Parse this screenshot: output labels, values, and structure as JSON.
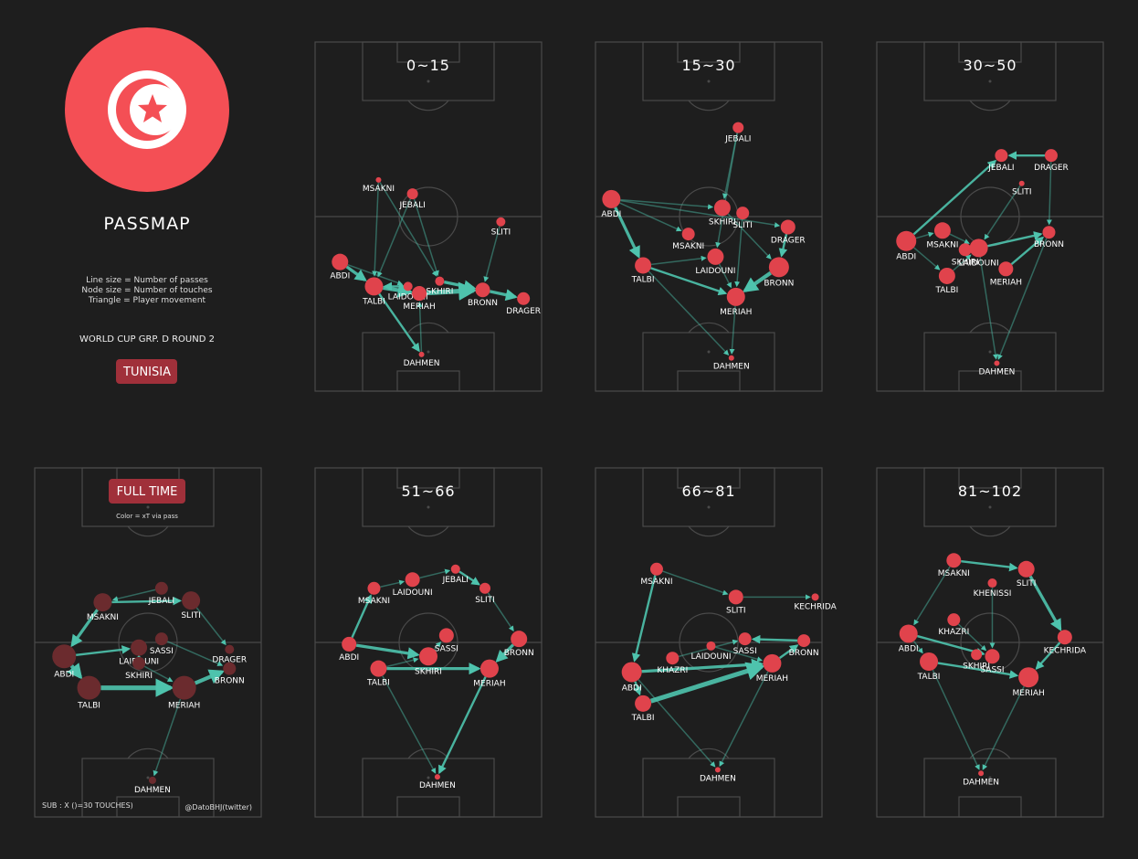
{
  "header": {
    "title": "PASSMAP",
    "legend": [
      "Line size = Number of passes",
      "Node size = Number of touches",
      "Triangle = Player movement"
    ],
    "competition": "WORLD CUP GRP. D ROUND 2",
    "team_badge": "TUNISIA",
    "flag_color": "#f44f55"
  },
  "fulltime": {
    "badge": "FULL TIME",
    "note": "Color = xT via pass",
    "sub_note": "SUB : X ()=30 TOUCHES)",
    "credit": "@DatoBHJ(twitter)"
  },
  "colors": {
    "node": "#e0434c",
    "node_dim": "#6b2b2e",
    "edge": "#4ec3ad",
    "badge": "#a0303a",
    "line": "#4a4a4a"
  },
  "chart_data": [
    {
      "type": "network",
      "title": "0~15",
      "nodes": [
        {
          "name": "MSAKNI",
          "x": 0.28,
          "y": 0.395,
          "r": 3
        },
        {
          "name": "JEBALI",
          "x": 0.43,
          "y": 0.435,
          "r": 6
        },
        {
          "name": "SLITI",
          "x": 0.82,
          "y": 0.515,
          "r": 5
        },
        {
          "name": "ABDI",
          "x": 0.11,
          "y": 0.63,
          "r": 9
        },
        {
          "name": "TALBI",
          "x": 0.26,
          "y": 0.7,
          "r": 10
        },
        {
          "name": "LAIDOUNI",
          "x": 0.41,
          "y": 0.7,
          "r": 5
        },
        {
          "name": "SKHIRI",
          "x": 0.55,
          "y": 0.685,
          "r": 5
        },
        {
          "name": "MERIAH",
          "x": 0.46,
          "y": 0.72,
          "r": 8
        },
        {
          "name": "BRONN",
          "x": 0.74,
          "y": 0.71,
          "r": 8
        },
        {
          "name": "DRAGER",
          "x": 0.92,
          "y": 0.735,
          "r": 7
        },
        {
          "name": "DAHMEN",
          "x": 0.47,
          "y": 0.895,
          "r": 3
        }
      ],
      "edges": [
        [
          "TALBI",
          "MERIAH",
          4
        ],
        [
          "MERIAH",
          "BRONN",
          5
        ],
        [
          "BRONN",
          "DRAGER",
          3
        ],
        [
          "ABDI",
          "TALBI",
          3
        ],
        [
          "TALBI",
          "DAHMEN",
          2
        ],
        [
          "SKHIRI",
          "BRONN",
          3
        ],
        [
          "LAIDOUNI",
          "TALBI",
          2
        ],
        [
          "JEBALI",
          "TALBI",
          1
        ],
        [
          "MSAKNI",
          "TALBI",
          1
        ],
        [
          "JEBALI",
          "SKHIRI",
          1
        ],
        [
          "SLITI",
          "BRONN",
          1
        ],
        [
          "ABDI",
          "LAIDOUNI",
          1
        ],
        [
          "DAHMEN",
          "MERIAH",
          1
        ],
        [
          "MSAKNI",
          "SKHIRI",
          1
        ]
      ]
    },
    {
      "type": "network",
      "title": "15~30",
      "nodes": [
        {
          "name": "JEBALI",
          "x": 0.63,
          "y": 0.245,
          "r": 6
        },
        {
          "name": "ABDI",
          "x": 0.07,
          "y": 0.45,
          "r": 10
        },
        {
          "name": "SKHIRI",
          "x": 0.56,
          "y": 0.475,
          "r": 9
        },
        {
          "name": "SLITI",
          "x": 0.65,
          "y": 0.49,
          "r": 7
        },
        {
          "name": "MSAKNI",
          "x": 0.41,
          "y": 0.55,
          "r": 7
        },
        {
          "name": "DRAGER",
          "x": 0.85,
          "y": 0.53,
          "r": 8
        },
        {
          "name": "LAIDOUNI",
          "x": 0.53,
          "y": 0.615,
          "r": 9
        },
        {
          "name": "TALBI",
          "x": 0.21,
          "y": 0.64,
          "r": 9
        },
        {
          "name": "BRONN",
          "x": 0.81,
          "y": 0.645,
          "r": 11
        },
        {
          "name": "MERIAH",
          "x": 0.62,
          "y": 0.73,
          "r": 10
        },
        {
          "name": "DAHMEN",
          "x": 0.6,
          "y": 0.905,
          "r": 3
        }
      ],
      "edges": [
        [
          "ABDI",
          "TALBI",
          3
        ],
        [
          "BRONN",
          "MERIAH",
          4
        ],
        [
          "TALBI",
          "MERIAH",
          2
        ],
        [
          "DRAGER",
          "BRONN",
          2
        ],
        [
          "ABDI",
          "SKHIRI",
          1
        ],
        [
          "ABDI",
          "MSAKNI",
          1
        ],
        [
          "ABDI",
          "DRAGER",
          1
        ],
        [
          "SKHIRI",
          "BRONN",
          1
        ],
        [
          "LAIDOUNI",
          "MERIAH",
          1
        ],
        [
          "JEBALI",
          "SKHIRI",
          1
        ],
        [
          "JEBALI",
          "LAIDOUNI",
          1
        ],
        [
          "TALBI",
          "LAIDOUNI",
          1
        ],
        [
          "MERIAH",
          "DAHMEN",
          1
        ],
        [
          "SLITI",
          "MERIAH",
          1
        ],
        [
          "TALBI",
          "DAHMEN",
          1
        ]
      ]
    },
    {
      "type": "network",
      "title": "30~50",
      "nodes": [
        {
          "name": "JEBALI",
          "x": 0.55,
          "y": 0.325,
          "r": 7
        },
        {
          "name": "DRAGER",
          "x": 0.77,
          "y": 0.325,
          "r": 7
        },
        {
          "name": "SLITI",
          "x": 0.64,
          "y": 0.405,
          "r": 3
        },
        {
          "name": "ABDI",
          "x": 0.13,
          "y": 0.57,
          "r": 11
        },
        {
          "name": "MSAKNI",
          "x": 0.29,
          "y": 0.54,
          "r": 9
        },
        {
          "name": "BRONN",
          "x": 0.76,
          "y": 0.545,
          "r": 7
        },
        {
          "name": "SKHIRI",
          "x": 0.39,
          "y": 0.595,
          "r": 7
        },
        {
          "name": "LAIDOUNI",
          "x": 0.45,
          "y": 0.59,
          "r": 10
        },
        {
          "name": "MERIAH",
          "x": 0.57,
          "y": 0.65,
          "r": 8
        },
        {
          "name": "TALBI",
          "x": 0.31,
          "y": 0.67,
          "r": 9
        },
        {
          "name": "DAHMEN",
          "x": 0.53,
          "y": 0.92,
          "r": 3
        }
      ],
      "edges": [
        [
          "ABDI",
          "JEBALI",
          2
        ],
        [
          "DRAGER",
          "JEBALI",
          2
        ],
        [
          "LAIDOUNI",
          "BRONN",
          2
        ],
        [
          "MERIAH",
          "BRONN",
          2
        ],
        [
          "ABDI",
          "MSAKNI",
          1
        ],
        [
          "MSAKNI",
          "LAIDOUNI",
          1
        ],
        [
          "TALBI",
          "LAIDOUNI",
          1
        ],
        [
          "SLITI",
          "LAIDOUNI",
          1
        ],
        [
          "LAIDOUNI",
          "DAHMEN",
          1
        ],
        [
          "ABDI",
          "TALBI",
          1
        ],
        [
          "DRAGER",
          "BRONN",
          1
        ],
        [
          "BRONN",
          "DAHMEN",
          1
        ]
      ]
    },
    {
      "type": "network",
      "title": "FULL TIME",
      "dimmed": true,
      "nodes": [
        {
          "name": "JEBALI",
          "x": 0.56,
          "y": 0.345,
          "r": 7
        },
        {
          "name": "SLITI",
          "x": 0.69,
          "y": 0.38,
          "r": 10
        },
        {
          "name": "MSAKNI",
          "x": 0.3,
          "y": 0.385,
          "r": 10
        },
        {
          "name": "DRAGER",
          "x": 0.86,
          "y": 0.52,
          "r": 5
        },
        {
          "name": "SASSI",
          "x": 0.56,
          "y": 0.49,
          "r": 7
        },
        {
          "name": "ABDI",
          "x": 0.13,
          "y": 0.54,
          "r": 13
        },
        {
          "name": "LAIDOUNI",
          "x": 0.46,
          "y": 0.515,
          "r": 9
        },
        {
          "name": "SKHIRI",
          "x": 0.46,
          "y": 0.56,
          "r": 7
        },
        {
          "name": "BRONN",
          "x": 0.86,
          "y": 0.575,
          "r": 7
        },
        {
          "name": "TALBI",
          "x": 0.24,
          "y": 0.63,
          "r": 13
        },
        {
          "name": "MERIAH",
          "x": 0.66,
          "y": 0.63,
          "r": 13
        },
        {
          "name": "DAHMEN",
          "x": 0.52,
          "y": 0.895,
          "r": 4
        }
      ],
      "edges": [
        [
          "TALBI",
          "MERIAH",
          5
        ],
        [
          "ABDI",
          "TALBI",
          4
        ],
        [
          "MERIAH",
          "BRONN",
          4
        ],
        [
          "MSAKNI",
          "ABDI",
          3
        ],
        [
          "MSAKNI",
          "SLITI",
          2
        ],
        [
          "ABDI",
          "LAIDOUNI",
          2
        ],
        [
          "MERIAH",
          "DAHMEN",
          1
        ],
        [
          "SKHIRI",
          "MERIAH",
          1
        ],
        [
          "JEBALI",
          "MSAKNI",
          1
        ],
        [
          "SASSI",
          "BRONN",
          1
        ],
        [
          "SLITI",
          "DRAGER",
          1
        ],
        [
          "LAIDOUNI",
          "SKHIRI",
          1
        ]
      ]
    },
    {
      "type": "network",
      "title": "51~66",
      "nodes": [
        {
          "name": "JEBALI",
          "x": 0.62,
          "y": 0.29,
          "r": 5
        },
        {
          "name": "LAIDOUNI",
          "x": 0.43,
          "y": 0.32,
          "r": 8
        },
        {
          "name": "SLITI",
          "x": 0.75,
          "y": 0.345,
          "r": 6
        },
        {
          "name": "MSAKNI",
          "x": 0.26,
          "y": 0.345,
          "r": 7
        },
        {
          "name": "SASSI",
          "x": 0.58,
          "y": 0.48,
          "r": 8
        },
        {
          "name": "BRONN",
          "x": 0.9,
          "y": 0.49,
          "r": 9
        },
        {
          "name": "ABDI",
          "x": 0.15,
          "y": 0.505,
          "r": 8
        },
        {
          "name": "SKHIRI",
          "x": 0.5,
          "y": 0.54,
          "r": 10
        },
        {
          "name": "TALBI",
          "x": 0.28,
          "y": 0.575,
          "r": 9
        },
        {
          "name": "MERIAH",
          "x": 0.77,
          "y": 0.575,
          "r": 10
        },
        {
          "name": "DAHMEN",
          "x": 0.54,
          "y": 0.885,
          "r": 3
        }
      ],
      "edges": [
        [
          "TALBI",
          "MERIAH",
          3
        ],
        [
          "ABDI",
          "SKHIRI",
          3
        ],
        [
          "BRONN",
          "MERIAH",
          3
        ],
        [
          "JEBALI",
          "SLITI",
          2
        ],
        [
          "MERIAH",
          "DAHMEN",
          2
        ],
        [
          "ABDI",
          "MSAKNI",
          2
        ],
        [
          "MSAKNI",
          "LAIDOUNI",
          1
        ],
        [
          "SLITI",
          "BRONN",
          1
        ],
        [
          "SKHIRI",
          "SASSI",
          1
        ],
        [
          "TALBI",
          "SKHIRI",
          1
        ],
        [
          "LAIDOUNI",
          "JEBALI",
          1
        ],
        [
          "TALBI",
          "DAHMEN",
          1
        ]
      ]
    },
    {
      "type": "network",
      "title": "66~81",
      "nodes": [
        {
          "name": "MSAKNI",
          "x": 0.27,
          "y": 0.29,
          "r": 7
        },
        {
          "name": "SLITI",
          "x": 0.62,
          "y": 0.37,
          "r": 8
        },
        {
          "name": "KECHRIDA",
          "x": 0.97,
          "y": 0.37,
          "r": 4
        },
        {
          "name": "SASSI",
          "x": 0.66,
          "y": 0.49,
          "r": 7
        },
        {
          "name": "BRONN",
          "x": 0.92,
          "y": 0.495,
          "r": 7
        },
        {
          "name": "LAIDOUNI",
          "x": 0.51,
          "y": 0.51,
          "r": 5
        },
        {
          "name": "KHAZRI",
          "x": 0.34,
          "y": 0.545,
          "r": 7
        },
        {
          "name": "MERIAH",
          "x": 0.78,
          "y": 0.56,
          "r": 10
        },
        {
          "name": "ABDI",
          "x": 0.16,
          "y": 0.585,
          "r": 11
        },
        {
          "name": "TALBI",
          "x": 0.21,
          "y": 0.675,
          "r": 9
        },
        {
          "name": "DAHMEN",
          "x": 0.54,
          "y": 0.865,
          "r": 3
        }
      ],
      "edges": [
        [
          "TALBI",
          "MERIAH",
          5
        ],
        [
          "ABDI",
          "MERIAH",
          3
        ],
        [
          "MSAKNI",
          "ABDI",
          2
        ],
        [
          "ABDI",
          "TALBI",
          2
        ],
        [
          "BRONN",
          "SASSI",
          2
        ],
        [
          "MERIAH",
          "BRONN",
          2
        ],
        [
          "MSAKNI",
          "SLITI",
          1
        ],
        [
          "KHAZRI",
          "SASSI",
          1
        ],
        [
          "LAIDOUNI",
          "MERIAH",
          1
        ],
        [
          "ABDI",
          "DAHMEN",
          1
        ],
        [
          "MERIAH",
          "DAHMEN",
          1
        ],
        [
          "SLITI",
          "KECHRIDA",
          1
        ]
      ]
    },
    {
      "type": "network",
      "title": "81~102",
      "nodes": [
        {
          "name": "MSAKNI",
          "x": 0.34,
          "y": 0.265,
          "r": 8
        },
        {
          "name": "SLITI",
          "x": 0.66,
          "y": 0.29,
          "r": 9
        },
        {
          "name": "KHENISSI",
          "x": 0.51,
          "y": 0.33,
          "r": 5
        },
        {
          "name": "KHAZRI",
          "x": 0.34,
          "y": 0.435,
          "r": 7
        },
        {
          "name": "ABDI",
          "x": 0.14,
          "y": 0.475,
          "r": 10
        },
        {
          "name": "KECHRIDA",
          "x": 0.83,
          "y": 0.485,
          "r": 8
        },
        {
          "name": "TALBI",
          "x": 0.23,
          "y": 0.555,
          "r": 10
        },
        {
          "name": "SKHIRI",
          "x": 0.44,
          "y": 0.535,
          "r": 6
        },
        {
          "name": "SASSI",
          "x": 0.51,
          "y": 0.54,
          "r": 8
        },
        {
          "name": "MERIAH",
          "x": 0.67,
          "y": 0.6,
          "r": 11
        },
        {
          "name": "DAHMEN",
          "x": 0.46,
          "y": 0.875,
          "r": 3
        }
      ],
      "edges": [
        [
          "SLITI",
          "KECHRIDA",
          3
        ],
        [
          "TALBI",
          "MERIAH",
          2
        ],
        [
          "ABDI",
          "SASSI",
          2
        ],
        [
          "KECHRIDA",
          "MERIAH",
          2
        ],
        [
          "MSAKNI",
          "SLITI",
          2
        ],
        [
          "ABDI",
          "TALBI",
          1
        ],
        [
          "KHAZRI",
          "SASSI",
          1
        ],
        [
          "TALBI",
          "DAHMEN",
          1
        ],
        [
          "MERIAH",
          "DAHMEN",
          1
        ],
        [
          "MSAKNI",
          "ABDI",
          1
        ],
        [
          "KHENISSI",
          "SASSI",
          1
        ]
      ]
    }
  ]
}
